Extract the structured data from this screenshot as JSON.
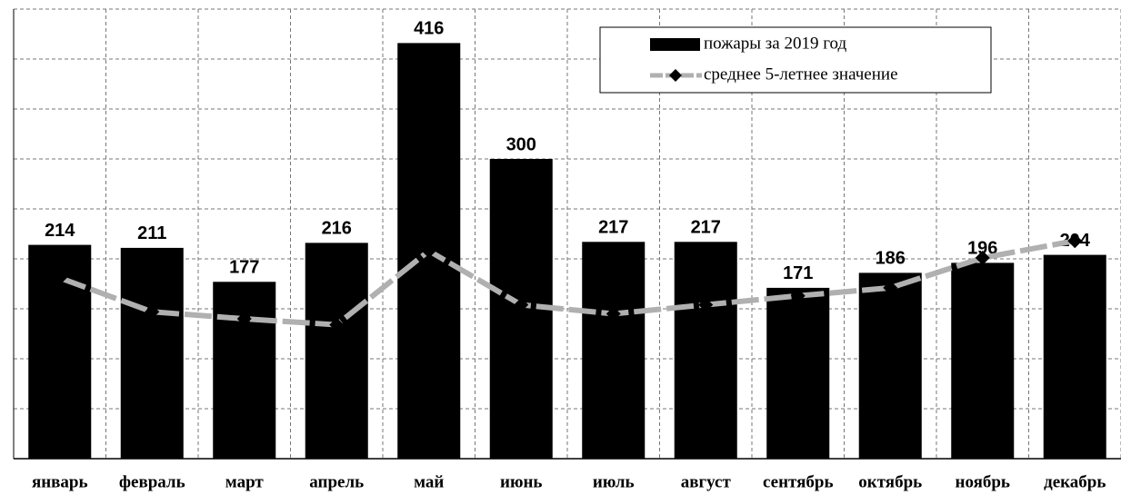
{
  "chart_data": {
    "type": "bar",
    "categories": [
      "январь",
      "февраль",
      "март",
      "апрель",
      "май",
      "июнь",
      "июль",
      "август",
      "сентябрь",
      "октябрь",
      "ноябрь",
      "декабрь"
    ],
    "series": [
      {
        "name": "пожары за 2019 год",
        "type": "bar",
        "color": "#000000",
        "values": [
          214,
          211,
          177,
          216,
          416,
          300,
          217,
          217,
          171,
          186,
          196,
          204
        ]
      },
      {
        "name": "среднее 5-летнее значение",
        "type": "line",
        "color": "#b0b0b0",
        "marker_color": "#000000",
        "values": [
          181,
          147,
          140,
          134,
          208,
          154,
          145,
          154,
          163,
          171,
          201,
          218
        ]
      }
    ],
    "ylim": [
      0,
      450
    ],
    "yticks": [
      0,
      50,
      100,
      150,
      200,
      250,
      300,
      350,
      400,
      450
    ],
    "grid": true,
    "legend": "upper right"
  }
}
